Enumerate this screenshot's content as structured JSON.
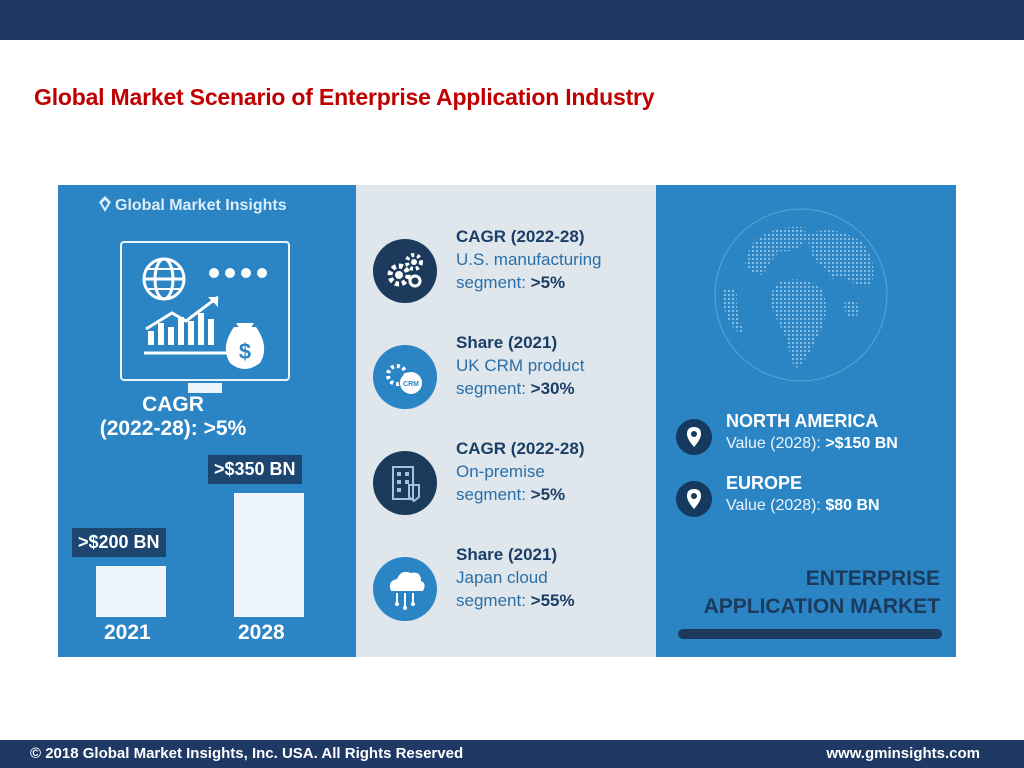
{
  "slide": {
    "title": "Global Market Scenario of Enterprise Application Industry",
    "footer_left": "© 2018 Global Market Insights, Inc. USA. All Rights Reserved",
    "footer_right": "www.gminsights.com"
  },
  "colors": {
    "header_bar": "#1f3864",
    "title_red": "#c00000",
    "panel_blue": "#2b84c3",
    "panel_grey": "#dfe6ec",
    "dark_navy": "#1b3a5c"
  },
  "infographic": {
    "logo": "Global Market Insights",
    "cagr_line1": "CAGR",
    "cagr_line2": "(2022-28): >5%",
    "bars": [
      {
        "year": "2021",
        "label": ">$200 BN",
        "value_bn": 200
      },
      {
        "year": "2028",
        "label": ">$350 BN",
        "value_bn": 350
      }
    ],
    "stats": [
      {
        "icon": "gears-icon",
        "line1": "CAGR (2022-28)",
        "line2": "U.S. manufacturing",
        "line3_prefix": "segment: ",
        "line3_value": ">5%"
      },
      {
        "icon": "crm-icon",
        "line1": "Share (2021)",
        "line2": "UK CRM product",
        "line3_prefix": "segment: ",
        "line3_value": ">30%"
      },
      {
        "icon": "building-icon",
        "line1": "CAGR (2022-28)",
        "line2": "On-premise",
        "line3_prefix": "segment: ",
        "line3_value": ">5%"
      },
      {
        "icon": "cloud-icon",
        "line1": "Share (2021)",
        "line2": "Japan cloud",
        "line3_prefix": "segment: ",
        "line3_value": ">55%"
      }
    ],
    "regions": [
      {
        "name": "NORTH AMERICA",
        "value_prefix": "Value (2028): ",
        "value": ">$150 BN"
      },
      {
        "name": "EUROPE",
        "value_prefix": "Value (2028): ",
        "value": "$80 BN"
      }
    ],
    "market_line1": "ENTERPRISE",
    "market_line2": "APPLICATION MARKET"
  }
}
